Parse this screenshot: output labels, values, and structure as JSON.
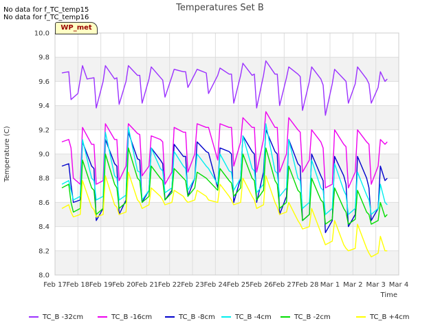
{
  "notes": [
    "No data for f_TC_temp15",
    "No data for f_TC_temp16"
  ],
  "badge": "WP_met",
  "chart_data": {
    "type": "line",
    "title": "Temperatures Set B",
    "xlabel": "Time",
    "ylabel": "Temperature (C)",
    "ylim": [
      8.0,
      10.0
    ],
    "yticks": [
      "8.0",
      "8.2",
      "8.4",
      "8.6",
      "8.8",
      "9.0",
      "9.2",
      "9.4",
      "9.6",
      "9.8",
      "10.0"
    ],
    "xlim": [
      "Feb 17",
      "Mar 4"
    ],
    "xticks": [
      "Feb 17",
      "Feb 18",
      "Feb 19",
      "Feb 20",
      "Feb 21",
      "Feb 22",
      "Feb 23",
      "Feb 24",
      "Feb 25",
      "Feb 26",
      "Feb 27",
      "Feb 28",
      "Mar 1",
      "Mar 2",
      "Mar 3",
      "Mar 4"
    ],
    "grid": true,
    "legend_position": "bottom",
    "series": [
      {
        "name": "TC_B -32cm",
        "color": "#9b30ff",
        "x_days": [
          0.3,
          0.6,
          0.7,
          1.0,
          1.2,
          1.4,
          1.7,
          1.8,
          2.1,
          2.2,
          2.6,
          2.7,
          2.8,
          3.1,
          3.2,
          3.6,
          3.7,
          3.8,
          4.1,
          4.2,
          4.7,
          4.8,
          5.1,
          5.2,
          5.6,
          5.7,
          5.8,
          6.1,
          6.2,
          6.6,
          6.7,
          7.1,
          7.2,
          7.6,
          7.7,
          7.8,
          8.1,
          8.2,
          8.6,
          8.7,
          8.8,
          9.1,
          9.2,
          9.6,
          9.7,
          9.8,
          10.1,
          10.2,
          10.6,
          10.7,
          10.8,
          11.1,
          11.2,
          11.6,
          11.7,
          11.8,
          12.1,
          12.2,
          12.6,
          12.7,
          12.8,
          13.1,
          13.2,
          13.6,
          13.7,
          13.8,
          14.1,
          14.2,
          14.4,
          14.5
        ],
        "values": [
          9.67,
          9.68,
          9.45,
          9.5,
          9.73,
          9.62,
          9.63,
          9.38,
          9.6,
          9.73,
          9.62,
          9.63,
          9.41,
          9.6,
          9.73,
          9.65,
          9.65,
          9.42,
          9.62,
          9.72,
          9.61,
          9.47,
          9.64,
          9.7,
          9.68,
          9.68,
          9.55,
          9.66,
          9.7,
          9.67,
          9.5,
          9.65,
          9.71,
          9.66,
          9.66,
          9.42,
          9.65,
          9.75,
          9.65,
          9.66,
          9.38,
          9.65,
          9.77,
          9.66,
          9.66,
          9.4,
          9.63,
          9.72,
          9.66,
          9.64,
          9.36,
          9.6,
          9.72,
          9.62,
          9.57,
          9.32,
          9.58,
          9.7,
          9.62,
          9.6,
          9.42,
          9.58,
          9.72,
          9.62,
          9.58,
          9.42,
          9.55,
          9.68,
          9.6,
          9.62
        ]
      },
      {
        "name": "TC_B -16cm",
        "color": "#ee00ee",
        "x_days": [
          0.3,
          0.6,
          0.7,
          0.8,
          1.1,
          1.2,
          1.6,
          1.7,
          1.8,
          2.1,
          2.2,
          2.6,
          2.7,
          2.8,
          3.1,
          3.2,
          3.6,
          3.7,
          3.8,
          4.1,
          4.2,
          4.6,
          4.7,
          4.8,
          5.1,
          5.2,
          5.6,
          5.7,
          5.8,
          6.1,
          6.2,
          6.6,
          6.7,
          7.1,
          7.2,
          7.6,
          7.7,
          7.8,
          8.1,
          8.2,
          8.6,
          8.7,
          8.8,
          9.1,
          9.2,
          9.6,
          9.7,
          9.8,
          10.1,
          10.2,
          10.6,
          10.7,
          10.8,
          11.1,
          11.2,
          11.6,
          11.7,
          11.8,
          12.1,
          12.2,
          12.6,
          12.7,
          12.8,
          13.1,
          13.2,
          13.6,
          13.7,
          13.8,
          14.1,
          14.2,
          14.4,
          14.5
        ],
        "values": [
          9.1,
          9.12,
          9.05,
          8.8,
          8.75,
          9.22,
          9.08,
          9.08,
          8.75,
          8.78,
          9.25,
          9.12,
          9.12,
          8.78,
          8.9,
          9.25,
          9.17,
          9.16,
          8.82,
          8.9,
          9.15,
          9.12,
          9.1,
          8.75,
          8.85,
          9.22,
          9.18,
          9.18,
          8.85,
          9.0,
          9.25,
          9.22,
          9.22,
          8.95,
          9.25,
          9.22,
          9.22,
          8.9,
          9.1,
          9.3,
          9.22,
          9.22,
          8.85,
          9.12,
          9.35,
          9.22,
          9.22,
          8.85,
          9.0,
          9.3,
          9.2,
          9.18,
          8.85,
          8.95,
          9.2,
          9.1,
          9.05,
          8.72,
          8.75,
          9.2,
          9.08,
          9.06,
          8.72,
          8.85,
          9.2,
          9.1,
          9.08,
          8.75,
          8.9,
          9.12,
          9.08,
          9.1
        ]
      },
      {
        "name": "TC_B -8cm",
        "color": "#0000cc",
        "x_days": [
          0.3,
          0.6,
          0.7,
          0.8,
          1.1,
          1.2,
          1.6,
          1.7,
          1.8,
          2.1,
          2.2,
          2.6,
          2.7,
          2.8,
          3.1,
          3.2,
          3.6,
          3.7,
          3.8,
          4.1,
          4.2,
          4.6,
          4.7,
          4.8,
          5.1,
          5.2,
          5.6,
          5.7,
          5.8,
          6.1,
          6.2,
          6.6,
          6.7,
          7.1,
          7.2,
          7.6,
          7.7,
          7.8,
          8.1,
          8.2,
          8.6,
          8.7,
          8.8,
          9.1,
          9.2,
          9.6,
          9.7,
          9.8,
          10.1,
          10.2,
          10.6,
          10.7,
          10.8,
          11.1,
          11.2,
          11.6,
          11.7,
          11.8,
          12.1,
          12.2,
          12.6,
          12.7,
          12.8,
          13.1,
          13.2,
          13.6,
          13.7,
          13.8,
          14.1,
          14.2,
          14.4,
          14.5
        ],
        "values": [
          8.9,
          8.92,
          8.75,
          8.6,
          8.62,
          9.1,
          8.9,
          8.88,
          8.45,
          8.55,
          9.12,
          8.92,
          8.9,
          8.5,
          8.62,
          9.18,
          8.96,
          8.95,
          8.6,
          8.7,
          9.05,
          8.95,
          8.92,
          8.62,
          8.7,
          9.08,
          8.98,
          8.98,
          8.65,
          8.8,
          9.1,
          9.02,
          9.01,
          8.72,
          9.05,
          9.02,
          9.0,
          8.6,
          8.8,
          9.15,
          9.02,
          9.0,
          8.6,
          8.85,
          9.2,
          9.02,
          9.0,
          8.5,
          8.65,
          9.12,
          8.92,
          8.9,
          8.45,
          8.5,
          9.0,
          8.82,
          8.78,
          8.35,
          8.45,
          8.98,
          8.82,
          8.75,
          8.4,
          8.5,
          8.98,
          8.8,
          8.72,
          8.45,
          8.55,
          8.9,
          8.78,
          8.8
        ]
      },
      {
        "name": "TC_B -4cm",
        "color": "#00eeee",
        "x_days": [
          0.3,
          0.6,
          0.7,
          0.8,
          1.1,
          1.2,
          1.6,
          1.7,
          1.8,
          2.1,
          2.2,
          2.6,
          2.7,
          2.8,
          3.1,
          3.2,
          3.6,
          3.7,
          3.8,
          4.1,
          4.2,
          4.6,
          4.7,
          4.8,
          5.1,
          5.2,
          5.6,
          5.7,
          5.8,
          6.1,
          6.2,
          6.6,
          6.7,
          7.1,
          7.2,
          7.6,
          7.7,
          7.8,
          8.1,
          8.2,
          8.6,
          8.7,
          8.8,
          9.1,
          9.2,
          9.6,
          9.7,
          9.8,
          10.1,
          10.2,
          10.6,
          10.7,
          10.8,
          11.1,
          11.2,
          11.6,
          11.7,
          11.8,
          12.1,
          12.2,
          12.6,
          12.7,
          12.8,
          13.1,
          13.2,
          13.6,
          13.7,
          13.8,
          14.1,
          14.2,
          14.4,
          14.5
        ],
        "values": [
          8.75,
          8.78,
          8.7,
          8.62,
          8.65,
          9.12,
          8.8,
          8.78,
          8.62,
          8.65,
          9.18,
          8.82,
          8.8,
          8.62,
          8.66,
          9.22,
          8.86,
          8.85,
          8.62,
          8.7,
          9.05,
          8.88,
          8.86,
          8.68,
          8.72,
          9.02,
          8.9,
          8.88,
          8.7,
          8.8,
          9.0,
          8.9,
          8.88,
          8.75,
          9.0,
          8.86,
          8.85,
          8.7,
          8.8,
          9.15,
          8.88,
          8.86,
          8.68,
          8.75,
          9.25,
          8.86,
          8.84,
          8.65,
          8.72,
          9.12,
          8.8,
          8.78,
          8.55,
          8.6,
          8.95,
          8.72,
          8.7,
          8.5,
          8.55,
          8.92,
          8.7,
          8.66,
          8.5,
          8.55,
          8.85,
          8.66,
          8.62,
          8.5,
          8.55,
          8.75,
          8.6,
          8.58
        ]
      },
      {
        "name": "TC_B -2cm",
        "color": "#00dd00",
        "x_days": [
          0.3,
          0.6,
          0.7,
          0.8,
          1.1,
          1.2,
          1.6,
          1.7,
          1.8,
          2.1,
          2.2,
          2.6,
          2.7,
          2.8,
          3.1,
          3.2,
          3.6,
          3.7,
          3.8,
          4.1,
          4.2,
          4.6,
          4.7,
          4.8,
          5.1,
          5.2,
          5.6,
          5.7,
          5.8,
          6.1,
          6.2,
          6.6,
          6.7,
          7.1,
          7.2,
          7.6,
          7.7,
          7.8,
          8.1,
          8.2,
          8.6,
          8.7,
          8.8,
          9.1,
          9.2,
          9.6,
          9.7,
          9.8,
          10.1,
          10.2,
          10.6,
          10.7,
          10.8,
          11.1,
          11.2,
          11.6,
          11.7,
          11.8,
          12.1,
          12.2,
          12.6,
          12.7,
          12.8,
          13.1,
          13.2,
          13.6,
          13.7,
          13.8,
          14.1,
          14.2,
          14.4,
          14.5
        ],
        "values": [
          8.72,
          8.75,
          8.6,
          8.52,
          8.55,
          8.95,
          8.72,
          8.7,
          8.5,
          8.55,
          9.0,
          8.75,
          8.72,
          8.55,
          8.6,
          9.05,
          8.8,
          8.78,
          8.6,
          8.65,
          8.9,
          8.8,
          8.78,
          8.62,
          8.68,
          8.88,
          8.8,
          8.78,
          8.65,
          8.72,
          8.85,
          8.8,
          8.78,
          8.7,
          8.88,
          8.78,
          8.76,
          8.65,
          8.72,
          9.0,
          8.8,
          8.78,
          8.62,
          8.7,
          9.05,
          8.78,
          8.75,
          8.55,
          8.6,
          8.9,
          8.7,
          8.68,
          8.45,
          8.5,
          8.8,
          8.62,
          8.6,
          8.42,
          8.46,
          8.72,
          8.55,
          8.52,
          8.42,
          8.46,
          8.7,
          8.52,
          8.5,
          8.42,
          8.45,
          8.6,
          8.48,
          8.5
        ]
      },
      {
        "name": "TC_B +4cm",
        "color": "#ffff00",
        "x_days": [
          0.3,
          0.6,
          0.7,
          0.8,
          1.1,
          1.2,
          1.6,
          1.7,
          1.8,
          2.1,
          2.2,
          2.6,
          2.7,
          2.8,
          3.1,
          3.2,
          3.6,
          3.7,
          3.8,
          4.1,
          4.2,
          4.6,
          4.7,
          4.8,
          5.1,
          5.2,
          5.6,
          5.7,
          5.8,
          6.1,
          6.2,
          6.6,
          6.7,
          7.1,
          7.2,
          7.6,
          7.7,
          7.8,
          8.1,
          8.2,
          8.6,
          8.7,
          8.8,
          9.1,
          9.2,
          9.6,
          9.7,
          9.8,
          10.1,
          10.2,
          10.6,
          10.7,
          10.8,
          11.1,
          11.2,
          11.6,
          11.7,
          11.8,
          12.1,
          12.2,
          12.6,
          12.7,
          12.8,
          13.1,
          13.2,
          13.6,
          13.7,
          13.8,
          14.1,
          14.2,
          14.4,
          14.5
        ],
        "values": [
          8.55,
          8.58,
          8.52,
          8.48,
          8.5,
          8.78,
          8.56,
          8.54,
          8.48,
          8.5,
          8.82,
          8.58,
          8.56,
          8.5,
          8.52,
          8.85,
          8.62,
          8.6,
          8.55,
          8.58,
          8.72,
          8.65,
          8.62,
          8.58,
          8.6,
          8.7,
          8.65,
          8.62,
          8.6,
          8.62,
          8.7,
          8.65,
          8.62,
          8.6,
          8.75,
          8.65,
          8.62,
          8.58,
          8.6,
          8.8,
          8.65,
          8.62,
          8.55,
          8.58,
          8.82,
          8.6,
          8.56,
          8.5,
          8.52,
          8.6,
          8.45,
          8.42,
          8.38,
          8.4,
          8.55,
          8.35,
          8.3,
          8.25,
          8.28,
          8.45,
          8.25,
          8.22,
          8.2,
          8.22,
          8.42,
          8.22,
          8.18,
          8.15,
          8.18,
          8.32,
          8.2,
          8.2
        ]
      }
    ]
  }
}
